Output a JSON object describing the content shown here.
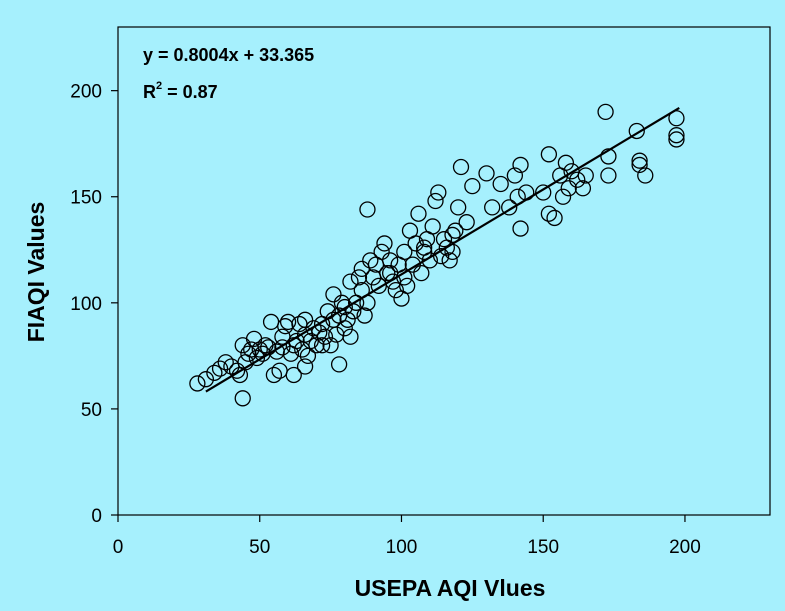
{
  "chart_data": {
    "type": "scatter",
    "xlabel": "USEPA AQI Vlues",
    "ylabel": "FIAQI Values",
    "xlim": [
      0,
      230
    ],
    "ylim": [
      0,
      230
    ],
    "xticks": [
      0,
      50,
      100,
      150,
      200
    ],
    "yticks": [
      0,
      50,
      100,
      150,
      200
    ],
    "grid": false,
    "legend": "none",
    "annotations": {
      "equation": "y = 0.8004x + 33.365",
      "r2_prefix": "R",
      "r2_sup": "2",
      "r2_value": " = 0.87"
    },
    "trendline": {
      "slope": 0.8004,
      "intercept": 33.365,
      "x_range": [
        31,
        198
      ]
    },
    "colors": {
      "background": "#a6f0fd",
      "plot_area": "#a6f0fd",
      "marker": "#000000"
    },
    "points": [
      [
        31,
        64
      ],
      [
        34,
        67
      ],
      [
        36,
        69
      ],
      [
        38,
        72
      ],
      [
        40,
        70
      ],
      [
        42,
        68
      ],
      [
        43,
        66
      ],
      [
        44,
        55
      ],
      [
        44,
        80
      ],
      [
        46,
        76
      ],
      [
        47,
        78
      ],
      [
        48,
        83
      ],
      [
        49,
        74
      ],
      [
        50,
        78
      ],
      [
        51,
        76
      ],
      [
        52,
        80
      ],
      [
        53,
        79
      ],
      [
        54,
        91
      ],
      [
        55,
        66
      ],
      [
        56,
        77
      ],
      [
        57,
        68
      ],
      [
        58,
        79
      ],
      [
        59,
        89
      ],
      [
        60,
        91
      ],
      [
        61,
        76
      ],
      [
        62,
        80
      ],
      [
        62,
        66
      ],
      [
        63,
        82
      ],
      [
        64,
        90
      ],
      [
        65,
        78
      ],
      [
        66,
        85
      ],
      [
        66,
        70
      ],
      [
        67,
        75
      ],
      [
        68,
        82
      ],
      [
        69,
        88
      ],
      [
        70,
        80
      ],
      [
        71,
        86
      ],
      [
        72,
        90
      ],
      [
        73,
        84
      ],
      [
        74,
        96
      ],
      [
        75,
        80
      ],
      [
        76,
        92
      ],
      [
        76,
        104
      ],
      [
        77,
        85
      ],
      [
        78,
        94
      ],
      [
        78,
        71
      ],
      [
        79,
        100
      ],
      [
        80,
        88
      ],
      [
        80,
        98
      ],
      [
        81,
        92
      ],
      [
        82,
        110
      ],
      [
        82,
        84
      ],
      [
        83,
        96
      ],
      [
        84,
        100
      ],
      [
        85,
        112
      ],
      [
        86,
        116
      ],
      [
        87,
        94
      ],
      [
        88,
        144
      ],
      [
        88,
        100
      ],
      [
        89,
        120
      ],
      [
        90,
        112
      ],
      [
        91,
        118
      ],
      [
        92,
        108
      ],
      [
        93,
        124
      ],
      [
        94,
        128
      ],
      [
        95,
        114
      ],
      [
        96,
        120
      ],
      [
        97,
        110
      ],
      [
        98,
        106
      ],
      [
        99,
        118
      ],
      [
        100,
        102
      ],
      [
        101,
        124
      ],
      [
        102,
        108
      ],
      [
        103,
        134
      ],
      [
        104,
        118
      ],
      [
        105,
        128
      ],
      [
        106,
        142
      ],
      [
        107,
        114
      ],
      [
        108,
        124
      ],
      [
        109,
        130
      ],
      [
        110,
        120
      ],
      [
        111,
        136
      ],
      [
        112,
        148
      ],
      [
        113,
        152
      ],
      [
        114,
        122
      ],
      [
        115,
        130
      ],
      [
        116,
        126
      ],
      [
        117,
        120
      ],
      [
        118,
        124
      ],
      [
        119,
        134
      ],
      [
        120,
        145
      ],
      [
        121,
        164
      ],
      [
        123,
        138
      ],
      [
        125,
        155
      ],
      [
        130,
        161
      ],
      [
        132,
        145
      ],
      [
        135,
        156
      ],
      [
        138,
        145
      ],
      [
        140,
        160
      ],
      [
        141,
        150
      ],
      [
        142,
        135
      ],
      [
        142,
        165
      ],
      [
        144,
        152
      ],
      [
        152,
        142
      ],
      [
        152,
        170
      ],
      [
        154,
        140
      ],
      [
        156,
        160
      ],
      [
        157,
        150
      ],
      [
        158,
        166
      ],
      [
        159,
        154
      ],
      [
        160,
        162
      ],
      [
        164,
        154
      ],
      [
        165,
        160
      ],
      [
        172,
        190
      ],
      [
        173,
        169
      ],
      [
        173,
        160
      ],
      [
        183,
        181
      ],
      [
        184,
        165
      ],
      [
        184,
        167
      ],
      [
        186,
        160
      ],
      [
        197,
        187
      ],
      [
        197,
        179
      ],
      [
        197,
        177
      ],
      [
        28,
        62
      ],
      [
        45,
        72
      ],
      [
        58,
        84
      ],
      [
        66,
        92
      ],
      [
        72,
        80
      ],
      [
        86,
        106
      ],
      [
        96,
        114
      ],
      [
        101,
        112
      ],
      [
        108,
        126
      ],
      [
        118,
        132
      ],
      [
        150,
        152
      ],
      [
        162,
        158
      ]
    ]
  }
}
